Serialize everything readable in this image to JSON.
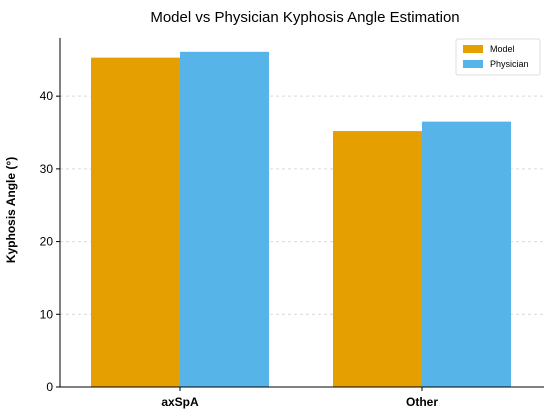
{
  "chart_data": {
    "type": "bar",
    "title": "Model vs Physician Kyphosis Angle Estimation",
    "xlabel": "",
    "ylabel": "Kyphosis Angle (°)",
    "categories": [
      "axSpA",
      "Other"
    ],
    "series": [
      {
        "name": "Model",
        "values": [
          45.3,
          35.2
        ],
        "color": "#E69F00"
      },
      {
        "name": "Physician",
        "values": [
          46.1,
          36.5
        ],
        "color": "#56B4E9"
      }
    ],
    "ylim": [
      0,
      48
    ],
    "yticks": [
      0,
      10,
      20,
      30,
      40
    ],
    "grid": true,
    "legend_position": "top-right"
  }
}
